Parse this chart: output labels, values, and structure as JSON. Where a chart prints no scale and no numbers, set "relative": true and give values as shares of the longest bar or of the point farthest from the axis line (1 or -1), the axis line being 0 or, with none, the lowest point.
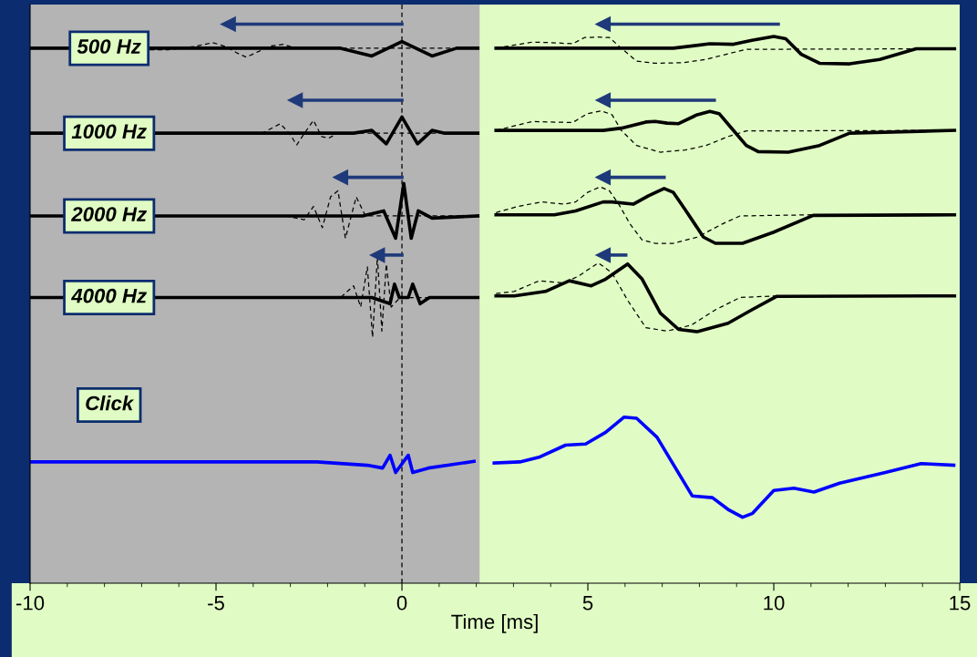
{
  "chart_data": {
    "type": "line",
    "relative": true,
    "xlabel": "Time [ms]",
    "xlim": [
      -10,
      15
    ],
    "xticks": [
      -10,
      -5,
      0,
      5,
      10,
      15
    ],
    "grid": false,
    "legend": false,
    "marker": "none",
    "bands": [
      {
        "axis": "x",
        "from": -10,
        "to": 2.09,
        "color": "#b4b4b4"
      }
    ],
    "ref_lines": [
      {
        "axis": "x",
        "value": 0,
        "color": "#000000",
        "line_style": "dashed"
      }
    ],
    "annotations": [
      "500 Hz",
      "1000 Hz",
      "2000 Hz",
      "4000 Hz",
      "Click"
    ],
    "series": [
      {
        "color": "#000000",
        "line_style": "solid",
        "x": [
          -10,
          -1.65,
          -0.81,
          0,
          0.81,
          1.47,
          2.04
        ],
        "values": [
          0.957,
          0.957,
          0.943,
          0.969,
          0.943,
          0.957,
          0.957
        ]
      },
      {
        "color": "#000000",
        "line_style": "dashed",
        "x": [
          -10,
          -6.31,
          -5.58,
          -5.09,
          -4.74,
          -4.42,
          -4.18,
          -3.86,
          -3.51,
          -3.19,
          -2.87,
          2.04
        ],
        "values": [
          0.957,
          0.954,
          0.96,
          0.967,
          0.96,
          0.948,
          0.941,
          0.951,
          0.961,
          0.964,
          0.957,
          0.957
        ]
      },
      {
        "color": "#000000",
        "line_style": "solid",
        "x": [
          2.53,
          7.3,
          8.28,
          8.92,
          9.41,
          10.0,
          10.32,
          10.74,
          11.23,
          12.04,
          12.85,
          13.83,
          14.86
        ],
        "values": [
          0.957,
          0.957,
          0.965,
          0.964,
          0.971,
          0.978,
          0.974,
          0.946,
          0.93,
          0.929,
          0.937,
          0.956,
          0.956
        ]
      },
      {
        "color": "#000000",
        "line_style": "dashed",
        "x": [
          2.53,
          3.51,
          4.0,
          4.59,
          4.91,
          5.28,
          5.58,
          5.9,
          6.31,
          6.81,
          7.54,
          8.18,
          8.77,
          9.26,
          14.86
        ],
        "values": [
          0.957,
          0.968,
          0.967,
          0.965,
          0.976,
          0.977,
          0.976,
          0.957,
          0.934,
          0.93,
          0.931,
          0.937,
          0.947,
          0.955,
          0.956
        ]
      },
      {
        "color": "#000000",
        "line_style": "solid",
        "x": [
          -10,
          -1.3,
          -0.81,
          -0.42,
          0,
          0.42,
          0.81,
          1.15,
          2.04
        ],
        "values": [
          0.805,
          0.805,
          0.81,
          0.786,
          0.834,
          0.786,
          0.81,
          0.805,
          0.805
        ]
      },
      {
        "color": "#000000",
        "line_style": "dashed",
        "x": [
          -10,
          -3.76,
          -3.27,
          -3.02,
          -2.83,
          -2.63,
          -2.38,
          -2.16,
          -1.97,
          -1.72,
          2.04
        ],
        "values": [
          0.805,
          0.805,
          0.822,
          0.804,
          0.784,
          0.804,
          0.828,
          0.799,
          0.796,
          0.805,
          0.805
        ]
      },
      {
        "color": "#000000",
        "line_style": "solid",
        "x": [
          2.53,
          5.41,
          5.9,
          6.56,
          6.81,
          7.13,
          7.44,
          7.94,
          8.28,
          8.53,
          8.85,
          9.26,
          9.58,
          10.39,
          11.23,
          12.04,
          14.86
        ],
        "values": [
          0.81,
          0.81,
          0.814,
          0.825,
          0.826,
          0.823,
          0.822,
          0.838,
          0.844,
          0.84,
          0.815,
          0.783,
          0.772,
          0.771,
          0.783,
          0.805,
          0.81
        ]
      },
      {
        "color": "#000000",
        "line_style": "dashed",
        "x": [
          2.53,
          3.02,
          3.51,
          4.0,
          4.59,
          4.99,
          5.36,
          5.65,
          5.9,
          6.31,
          6.95,
          7.62,
          8.18,
          8.77,
          9.26,
          14.86
        ],
        "values": [
          0.81,
          0.818,
          0.826,
          0.825,
          0.824,
          0.84,
          0.845,
          0.838,
          0.81,
          0.783,
          0.771,
          0.775,
          0.783,
          0.799,
          0.809,
          0.81
        ]
      },
      {
        "color": "#000000",
        "line_style": "solid",
        "x": [
          -10,
          -1.06,
          -0.49,
          -0.17,
          0.05,
          0.25,
          0.44,
          0.81,
          2.04
        ],
        "values": [
          0.657,
          0.657,
          0.666,
          0.617,
          0.715,
          0.617,
          0.666,
          0.653,
          0.657
        ]
      },
      {
        "color": "#000000",
        "line_style": "dashed",
        "x": [
          -10,
          -3.12,
          -2.63,
          -2.38,
          -2.14,
          -1.92,
          -1.72,
          -1.52,
          -1.23,
          -0.98,
          2.04
        ],
        "values": [
          0.657,
          0.657,
          0.65,
          0.674,
          0.636,
          0.691,
          0.702,
          0.617,
          0.691,
          0.657,
          0.657
        ]
      },
      {
        "color": "#000000",
        "line_style": "solid",
        "x": [
          2.53,
          4.1,
          4.67,
          5.41,
          5.65,
          6.22,
          6.63,
          7.05,
          7.3,
          7.62,
          8.11,
          8.43,
          9.16,
          10.0,
          11.06,
          14.86
        ],
        "values": [
          0.659,
          0.659,
          0.666,
          0.682,
          0.682,
          0.678,
          0.693,
          0.706,
          0.699,
          0.668,
          0.619,
          0.608,
          0.608,
          0.628,
          0.658,
          0.659
        ]
      },
      {
        "color": "#000000",
        "line_style": "dashed",
        "x": [
          2.53,
          3.12,
          3.76,
          4.35,
          4.67,
          4.99,
          5.33,
          5.58,
          5.82,
          6.14,
          6.46,
          6.81,
          7.3,
          7.94,
          8.6,
          9.09,
          11.06,
          14.86
        ],
        "values": [
          0.663,
          0.674,
          0.682,
          0.678,
          0.682,
          0.699,
          0.709,
          0.702,
          0.679,
          0.642,
          0.614,
          0.608,
          0.608,
          0.619,
          0.642,
          0.657,
          0.659,
          0.659
        ]
      },
      {
        "color": "#000000",
        "line_style": "solid",
        "x": [
          -10,
          -0.81,
          -0.32,
          -0.2,
          -0.07,
          0.17,
          0.29,
          0.49,
          0.74,
          2.04
        ],
        "values": [
          0.511,
          0.511,
          0.5,
          0.535,
          0.511,
          0.511,
          0.535,
          0.5,
          0.511,
          0.511
        ]
      },
      {
        "color": "#000000",
        "line_style": "dashed",
        "x": [
          -10,
          -1.65,
          -1.3,
          -1.11,
          -0.93,
          -0.79,
          -0.66,
          -0.54,
          -0.42,
          -0.29,
          -0.05,
          2.04
        ],
        "values": [
          0.511,
          0.511,
          0.532,
          0.494,
          0.566,
          0.44,
          0.584,
          0.451,
          0.571,
          0.494,
          0.511,
          0.511
        ]
      },
      {
        "color": "#000000",
        "line_style": "solid",
        "x": [
          2.53,
          3.02,
          3.86,
          4.5,
          5.09,
          5.48,
          6.07,
          6.46,
          6.95,
          7.44,
          7.94,
          8.77,
          9.41,
          10.07,
          14.86
        ],
        "values": [
          0.514,
          0.514,
          0.522,
          0.541,
          0.532,
          0.544,
          0.571,
          0.544,
          0.483,
          0.454,
          0.45,
          0.465,
          0.489,
          0.513,
          0.514
        ]
      },
      {
        "color": "#000000",
        "line_style": "dashed",
        "x": [
          2.53,
          3.02,
          3.69,
          4.35,
          4.74,
          5.28,
          5.65,
          6.07,
          6.56,
          7.13,
          7.79,
          8.43,
          9.09,
          10.07,
          14.86
        ],
        "values": [
          0.518,
          0.522,
          0.541,
          0.537,
          0.549,
          0.573,
          0.555,
          0.506,
          0.457,
          0.451,
          0.462,
          0.489,
          0.511,
          0.514,
          0.514
        ]
      },
      {
        "color": "#0000ff",
        "line_style": "solid",
        "x": [
          -10,
          -6.39,
          -2.29,
          -0.93,
          -0.52,
          -0.32,
          -0.17,
          0.17,
          0.29,
          0.71,
          1.94
        ],
        "values": [
          0.217,
          0.217,
          0.217,
          0.211,
          0.206,
          0.229,
          0.198,
          0.229,
          0.198,
          0.206,
          0.218
        ]
      },
      {
        "color": "#0000ff",
        "line_style": "solid",
        "x": [
          2.48,
          3.17,
          3.71,
          4.4,
          4.94,
          5.48,
          5.97,
          6.31,
          6.86,
          7.81,
          8.35,
          8.77,
          9.16,
          9.43,
          10.0,
          10.54,
          11.08,
          11.77,
          13.0,
          13.96,
          14.84
        ],
        "values": [
          0.215,
          0.217,
          0.226,
          0.247,
          0.249,
          0.27,
          0.297,
          0.295,
          0.261,
          0.156,
          0.153,
          0.132,
          0.118,
          0.125,
          0.166,
          0.17,
          0.163,
          0.179,
          0.198,
          0.214,
          0.211
        ]
      },
      {
        "color": "#1f3a7a",
        "line_style": "solid",
        "marker": "triangle",
        "x": [
          0,
          -4.67
        ],
        "values": [
          1,
          1
        ]
      },
      {
        "color": "#1f3a7a",
        "line_style": "solid",
        "marker": "triangle",
        "x": [
          10.12,
          5.41
        ],
        "values": [
          1,
          1
        ]
      },
      {
        "color": "#1f3a7a",
        "line_style": "solid",
        "marker": "triangle",
        "x": [
          0,
          -2.87
        ],
        "values": [
          0.864,
          0.864
        ]
      },
      {
        "color": "#1f3a7a",
        "line_style": "solid",
        "marker": "triangle",
        "x": [
          8.4,
          5.41
        ],
        "values": [
          0.864,
          0.864
        ]
      },
      {
        "color": "#1f3a7a",
        "line_style": "solid",
        "marker": "triangle",
        "x": [
          0,
          -1.65
        ],
        "values": [
          0.726,
          0.726
        ]
      },
      {
        "color": "#1f3a7a",
        "line_style": "solid",
        "marker": "triangle",
        "x": [
          7.05,
          5.41
        ],
        "values": [
          0.726,
          0.726
        ]
      },
      {
        "color": "#1f3a7a",
        "line_style": "solid",
        "marker": "triangle",
        "x": [
          0,
          -0.66
        ],
        "values": [
          0.587,
          0.587
        ]
      },
      {
        "color": "#1f3a7a",
        "line_style": "solid",
        "marker": "triangle",
        "x": [
          6.02,
          5.41
        ],
        "values": [
          0.587,
          0.587
        ]
      }
    ]
  }
}
